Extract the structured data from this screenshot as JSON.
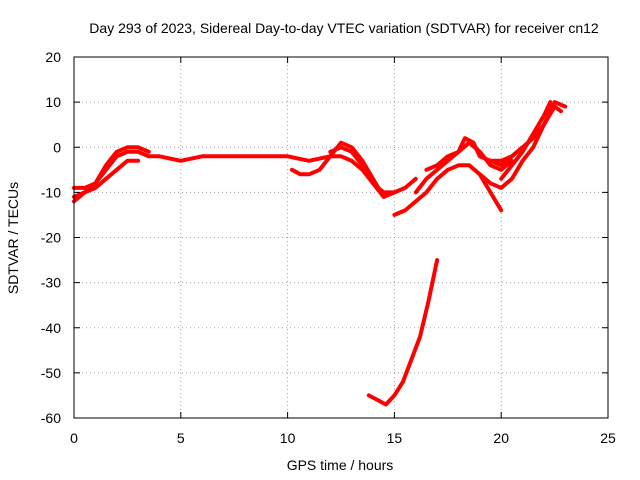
{
  "chart_data": {
    "type": "line",
    "title": "Day 293 of 2023, Sidereal Day-to-day VTEC variation (SDTVAR) for receiver cn12",
    "xlabel": "GPS time / hours",
    "ylabel": "SDTVAR / TECUs",
    "xlim": [
      0,
      25
    ],
    "ylim": [
      -60,
      20
    ],
    "xticks": [
      0,
      5,
      10,
      15,
      20,
      25
    ],
    "yticks": [
      -60,
      -50,
      -40,
      -30,
      -20,
      -10,
      0,
      10,
      20
    ],
    "grid": true,
    "color": "#ff0000",
    "series": [
      {
        "name": "trace-1",
        "x": [
          0.0,
          0.5,
          1.0,
          1.5,
          2.0,
          2.5,
          3.0,
          3.5,
          4.0,
          5.0,
          6.0,
          7.0,
          8.0,
          9.0,
          10.0,
          11.0,
          12.0,
          12.5,
          13.0,
          13.5,
          14.0,
          14.5,
          15.0,
          15.5,
          16.0
        ],
        "y": [
          -9,
          -9,
          -8,
          -5,
          -2,
          -1,
          -1,
          -2,
          -2,
          -3,
          -2,
          -2,
          -2,
          -2,
          -2,
          -3,
          -2,
          -2,
          -3,
          -5,
          -8,
          -10,
          -10,
          -9,
          -7
        ]
      },
      {
        "name": "trace-2",
        "x": [
          0.0,
          0.5,
          1.0,
          1.5,
          2.0,
          2.5,
          3.0,
          3.5
        ],
        "y": [
          -11,
          -10,
          -8,
          -4,
          -1,
          0,
          0,
          -1
        ]
      },
      {
        "name": "trace-3",
        "x": [
          0.0,
          0.5,
          1.0,
          1.5,
          2.0,
          2.5,
          3.0
        ],
        "y": [
          -12,
          -10,
          -9,
          -7,
          -5,
          -3,
          -3
        ]
      },
      {
        "name": "trace-4",
        "x": [
          10.2,
          10.6,
          11.0,
          11.5,
          12.0,
          12.5,
          13.0,
          13.5,
          14.0,
          14.5
        ],
        "y": [
          -5,
          -6,
          -6,
          -5,
          -2,
          1,
          0,
          -3,
          -7,
          -11
        ]
      },
      {
        "name": "trace-5",
        "x": [
          12.0,
          12.5,
          13.0,
          13.5,
          14.0,
          14.5,
          15.0
        ],
        "y": [
          -1,
          0,
          -1,
          -4,
          -8,
          -11,
          -10
        ]
      },
      {
        "name": "trace-6",
        "x": [
          15.0,
          15.5,
          16.0,
          16.5,
          17.0,
          17.5,
          18.0,
          18.5,
          19.0,
          19.5,
          20.0
        ],
        "y": [
          -15,
          -14,
          -12,
          -10,
          -7,
          -5,
          -4,
          -4,
          -6,
          -10,
          -14
        ]
      },
      {
        "name": "trace-7",
        "x": [
          16.0,
          16.5,
          17.0,
          17.5,
          18.0,
          18.5,
          19.0,
          19.5,
          20.0,
          20.5
        ],
        "y": [
          -10,
          -7,
          -5,
          -3,
          -1,
          1,
          -1,
          -4,
          -5,
          -3
        ]
      },
      {
        "name": "trace-8",
        "x": [
          16.5,
          17.0,
          17.5,
          18.0,
          18.3,
          18.7,
          19.0,
          19.5,
          20.0,
          20.5,
          21.0
        ],
        "y": [
          -5,
          -4,
          -2,
          -1,
          2,
          1,
          -2,
          -3,
          -4,
          -2,
          0
        ]
      },
      {
        "name": "trace-9",
        "x": [
          19.0,
          19.5,
          20.0,
          20.5,
          21.0,
          21.5,
          22.0,
          22.5,
          23.0
        ],
        "y": [
          -6,
          -8,
          -9,
          -7,
          -3,
          0,
          5,
          10,
          9
        ]
      },
      {
        "name": "trace-10",
        "x": [
          19.5,
          20.0,
          20.5,
          21.0,
          21.5,
          22.0,
          22.5,
          22.8
        ],
        "y": [
          -3,
          -3,
          -2,
          0,
          2,
          5,
          9,
          8
        ]
      },
      {
        "name": "trace-11",
        "x": [
          20.0,
          20.5,
          21.0,
          21.5,
          22.0,
          22.3
        ],
        "y": [
          -7,
          -4,
          -1,
          3,
          7,
          10
        ]
      },
      {
        "name": "trace-12",
        "x": [
          13.8,
          14.2,
          14.6,
          15.0,
          15.4,
          15.8,
          16.2,
          16.6,
          17.0
        ],
        "y": [
          -55,
          -56,
          -57,
          -55,
          -52,
          -47,
          -42,
          -34,
          -25
        ]
      }
    ]
  }
}
